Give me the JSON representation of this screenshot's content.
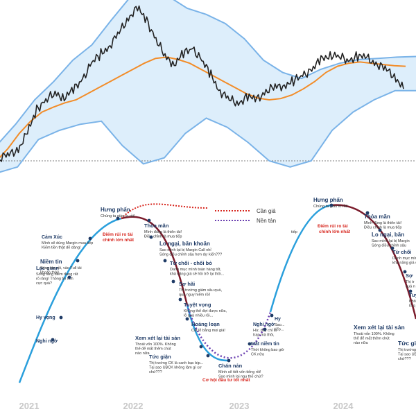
{
  "chart_data": {
    "type": "line",
    "title": "",
    "x_ticks": [
      "2021",
      "2022",
      "2023",
      "2024"
    ],
    "series": [
      {
        "key": "price",
        "values": [
          5,
          10,
          20,
          45,
          85,
          100,
          110,
          105,
          115,
          135,
          160,
          175,
          190,
          210,
          235,
          250,
          230,
          200,
          170,
          160,
          175,
          185,
          165,
          140,
          115,
          100,
          95,
          105,
          100,
          115,
          120,
          125,
          130,
          140,
          150,
          165,
          175,
          170,
          165,
          172,
          168,
          160,
          150,
          140,
          118
        ],
        "color": "#222222"
      },
      {
        "key": "moving_average",
        "values": [
          0,
          20,
          45,
          65,
          80,
          88,
          95,
          100,
          110,
          120,
          130,
          140,
          150,
          160,
          168,
          170,
          166,
          160,
          150,
          140,
          130,
          120,
          110,
          103,
          100,
          102,
          108,
          118,
          130,
          145,
          155,
          160,
          162,
          160,
          158,
          156,
          155
        ],
        "color": "#f28c28"
      },
      {
        "key": "upper_band",
        "values": [
          25,
          60,
          100,
          130,
          165,
          190,
          230,
          268,
          285,
          270,
          250,
          240,
          225,
          200,
          165,
          145,
          135,
          150,
          160,
          166,
          168,
          170,
          171
        ],
        "color": "#7ab3e8"
      },
      {
        "key": "lower_band",
        "values": [
          -20,
          -10,
          35,
          50,
          60,
          65,
          25,
          -5,
          5,
          45,
          70,
          55,
          30,
          0,
          -10,
          0,
          50,
          80,
          100,
          115,
          115
        ],
        "color": "#7ab3e8"
      }
    ],
    "legend": [
      {
        "label": "Cần giả",
        "color": "#d7261e",
        "style": "dotted"
      },
      {
        "label": "Nền tản",
        "color": "#6a3fb0",
        "style": "dotted"
      }
    ],
    "band_fill": "#ddeefb",
    "dashed_level": 0,
    "cycles": [
      {
        "stages": [
          {
            "label": "Nghi ngờ",
            "desc": []
          },
          {
            "label": "Hy vọng",
            "desc": []
          },
          {
            "label": "Lạc quan",
            "desc": [
              "Sóng tăng điểm đang rất",
              "rõ ràng! Thông tin tích",
              "cực quá?"
            ]
          },
          {
            "label": "Niềm tin",
            "desc": [
              "Sóng lớn rồi, vào Full tài",
              "khoản thôi!"
            ]
          },
          {
            "label": "Cảm Xúc",
            "desc": [
              "Mình sẽ dùng Margin mua tiếp",
              "Kiếm tiền thật dễ dàng!"
            ]
          },
          {
            "label": "Hưng phấn",
            "desc": [
              "Chúng ta giàu to rồi!"
            ]
          },
          {
            "label": "Thỏa mãn",
            "desc": [
              "Mình đúng là thiên tài!",
              "Điều chỉnh là mua tiếp"
            ]
          },
          {
            "label": "Lo ngại, băn khoăn",
            "desc": [
              "Sao mình lại bị Margin Call nhỉ",
              "Sóng điều chỉnh sâu hơn dự kiến???"
            ]
          },
          {
            "label": "Từ chối - chối bỏ",
            "desc": [
              "Danh mục mình toàn hàng tốt,",
              "khả năng giá sẽ hồi trở lại thôi..."
            ]
          },
          {
            "label": "Sợ hãi",
            "desc": [
              "Thị trường giảm sâu quá,",
              "quá nguy hiểm rồi!"
            ]
          },
          {
            "label": "Tuyệt vọng",
            "desc": [
              "Không thể đợi được nữa,",
              "lỗ quá nhiều rồi..."
            ]
          },
          {
            "label": "Hoảng loạn",
            "desc": [
              "Cắt lỗ bằng mọi giá!"
            ]
          },
          {
            "label": "Xem xét lại tài sản",
            "desc": [
              "Thoái vốn 100%. Không",
              "thể để mất thêm chút",
              "nào nữa"
            ]
          },
          {
            "label": "Tức giận",
            "desc": [
              "Thị trường CK là canh bạc bịp...",
              "Tại sao UBCK không làm gì cơ",
              "chứ???"
            ]
          },
          {
            "label": "Chán nản",
            "desc": [
              "Mình sẽ tiết vốn tiếng rồi!",
              "Sao mình lại ngu thế chứ?"
            ]
          },
          {
            "label": "Mất niềm tin",
            "desc": [
              "Thời không bao giờ",
              "CK nữa"
            ]
          },
          {
            "label": "Nghi ngờ",
            "desc": [
              "Hừ, đây chỉ là",
              "trap mà thôi,"
            ]
          },
          {
            "label": "Hy",
            "desc": [
              "Sao...",
              "tiếp..."
            ]
          }
        ],
        "notes": [
          "Điểm rủi ro tài",
          "chính lớn nhất"
        ],
        "footnote": "Cơ hội đầu tư tốt nhất"
      },
      {
        "stages": [
          {
            "label": "Hưng phấn",
            "desc": [
              "Chúng ta giàu to rồi!"
            ]
          },
          {
            "label": "Thỏa mãn",
            "desc": [
              "Mình đúng là thiên tài!",
              "Điều chỉnh là mua tiếp"
            ]
          },
          {
            "label": "Lo ngại, băn",
            "desc": [
              "Sao mình lại bị Margin",
              "Sóng điều chỉnh sâu"
            ]
          },
          {
            "label": "Từ chối",
            "desc": [
              "Danh mục mình",
              "khả năng giá sẽ"
            ]
          },
          {
            "label": "Sợ",
            "desc": [
              "Thị tr",
              "quá n"
            ]
          },
          {
            "label": "Tuy",
            "desc": [
              "Khô",
              "lỗ q"
            ]
          },
          {
            "label": "Xem xét lại tài sản",
            "desc": [
              "Thoái vốn 100%. Không",
              "thể để mất thêm chút",
              "nào nữa"
            ]
          },
          {
            "label": "Tức giậ",
            "desc": [
              "Thị trường CK là canh bạc",
              "Tại sao UBCK không làm gì",
              "chứ???"
            ]
          }
        ],
        "notes": [
          "Điểm rủi ro tài",
          "chính lớn nhất"
        ],
        "extra": [
          "tiếp"
        ]
      }
    ]
  }
}
